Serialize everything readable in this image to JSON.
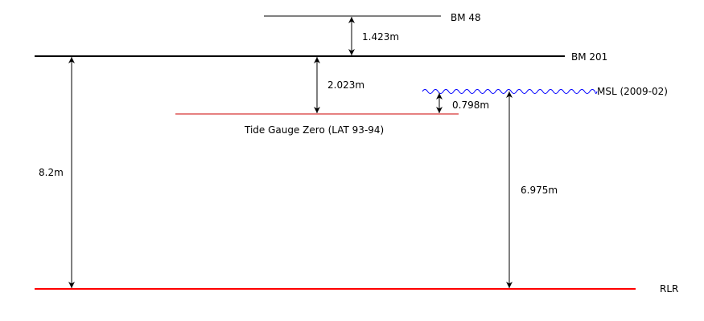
{
  "colors": {
    "datum_black": "#000000",
    "datum_red": "#cc0000",
    "rlr_red": "#ff0000",
    "msl_blue": "#0000ff"
  },
  "levels": {
    "bm48": "BM 48",
    "bm201": "BM 201",
    "msl": "MSL (2009-02)",
    "tide_gauge_zero": "Tide Gauge Zero (LAT 93-94)",
    "rlr": "RLR"
  },
  "measurements": {
    "bm48_to_bm201": "1.423m",
    "bm201_to_tgz": "2.023m",
    "tgz_to_msl": "0.798m",
    "bm201_to_rlr": "8.2m",
    "msl_to_rlr": "6.975m"
  }
}
